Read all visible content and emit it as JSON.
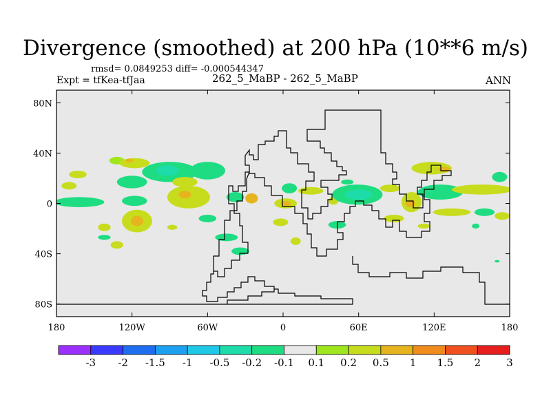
{
  "header": {
    "title": "Divergence (smoothed) at 200 hPa (10**6 m/s)",
    "stats": "rmsd= 0.0849253 diff= -0.000544347",
    "expt": "Expt = tfKea-tfJaa",
    "cases": "262_5_MaBP - 262_5_MaBP",
    "period": "ANN"
  },
  "chart_data": {
    "type": "heatmap",
    "title": "Divergence (smoothed) at 200 hPa (10**6 m/s)",
    "xlim": [
      -180,
      180
    ],
    "ylim": [
      -90,
      90
    ],
    "x_ticks": [
      {
        "value": -180,
        "label": "180"
      },
      {
        "value": -120,
        "label": "120W"
      },
      {
        "value": -60,
        "label": "60W"
      },
      {
        "value": 0,
        "label": "0"
      },
      {
        "value": 60,
        "label": "60E"
      },
      {
        "value": 120,
        "label": "120E"
      },
      {
        "value": 180,
        "label": "180"
      }
    ],
    "y_ticks": [
      {
        "value": 80,
        "label": "80N"
      },
      {
        "value": 40,
        "label": "40N"
      },
      {
        "value": 0,
        "label": "0"
      },
      {
        "value": -40,
        "label": "40S"
      },
      {
        "value": -80,
        "label": "80S"
      }
    ],
    "colorbar": {
      "levels": [
        "-3",
        "-2",
        "-1.5",
        "-1",
        "-0.5",
        "-0.2",
        "-0.1",
        "0.1",
        "0.2",
        "0.5",
        "1",
        "1.5",
        "2",
        "3"
      ],
      "colors": [
        "#9b30ff",
        "#3a3aff",
        "#1e6ef0",
        "#1ea0f0",
        "#1ec8e6",
        "#1edcaa",
        "#1edc82",
        "#e8e8e8",
        "#a0e61e",
        "#c8dc1e",
        "#e6b41e",
        "#f08c1e",
        "#f0501e",
        "#e61e1e"
      ]
    },
    "background_color": "#e8e8e8",
    "contour_regions": [
      {
        "lon": -163,
        "lat": 23,
        "rlon": 7,
        "rlat": 3,
        "value": 0.2
      },
      {
        "lon": -132,
        "lat": 34,
        "rlon": 6,
        "rlat": 3,
        "value": 0.1
      },
      {
        "lon": -118,
        "lat": 32,
        "rlon": 12,
        "rlat": 4,
        "value": 0.3
      },
      {
        "lon": -122,
        "lat": 34,
        "rlon": 3,
        "rlat": 1.5,
        "value": 0.7
      },
      {
        "lon": -90,
        "lat": 25,
        "rlon": 22,
        "rlat": 8,
        "value": -0.15
      },
      {
        "lon": -92,
        "lat": 26,
        "rlon": 9,
        "rlat": 4,
        "value": -0.3
      },
      {
        "lon": -60,
        "lat": 26,
        "rlon": 14,
        "rlat": 7,
        "value": -0.15
      },
      {
        "lon": -170,
        "lat": 14,
        "rlon": 6,
        "rlat": 3,
        "value": 0.2
      },
      {
        "lon": -120,
        "lat": 17,
        "rlon": 12,
        "rlat": 5,
        "value": -0.15
      },
      {
        "lon": -78,
        "lat": 17,
        "rlon": 10,
        "rlat": 4,
        "value": 0.2
      },
      {
        "lon": -162,
        "lat": 1,
        "rlon": 20,
        "rlat": 4,
        "value": -0.15
      },
      {
        "lon": -118,
        "lat": 2,
        "rlon": 10,
        "rlat": 4,
        "value": -0.15
      },
      {
        "lon": -75,
        "lat": 5,
        "rlon": 17,
        "rlat": 9,
        "value": 0.2
      },
      {
        "lon": -78,
        "lat": 7,
        "rlon": 5,
        "rlat": 3,
        "value": 0.6
      },
      {
        "lon": -38,
        "lat": 5,
        "rlon": 7,
        "rlat": 4,
        "value": -0.15
      },
      {
        "lon": -25,
        "lat": 4,
        "rlon": 5,
        "rlat": 4,
        "value": 0.6
      },
      {
        "lon": 5,
        "lat": 12,
        "rlon": 6,
        "rlat": 4,
        "value": -0.15
      },
      {
        "lon": 2,
        "lat": 0,
        "rlon": 9,
        "rlat": 4,
        "value": 0.3
      },
      {
        "lon": 2,
        "lat": 0,
        "rlon": 4,
        "rlat": 2,
        "value": 0.7
      },
      {
        "lon": 22,
        "lat": 10,
        "rlon": 10,
        "rlat": 3,
        "value": 0.2
      },
      {
        "lon": 40,
        "lat": 2,
        "rlon": 4,
        "rlat": 3,
        "value": 0.2
      },
      {
        "lon": 51,
        "lat": 17,
        "rlon": 5,
        "rlat": 2,
        "value": -0.15
      },
      {
        "lon": 59,
        "lat": 7,
        "rlon": 20,
        "rlat": 8,
        "value": -0.15
      },
      {
        "lon": 60,
        "lat": 7,
        "rlon": 11,
        "rlat": 4,
        "value": -0.4
      },
      {
        "lon": 85,
        "lat": 12,
        "rlon": 8,
        "rlat": 3,
        "value": 0.2
      },
      {
        "lon": 102,
        "lat": 1,
        "rlon": 8,
        "rlat": 8,
        "value": 0.3
      },
      {
        "lon": 101,
        "lat": 0,
        "rlon": 4,
        "rlat": 3,
        "value": 0.8
      },
      {
        "lon": 118,
        "lat": 28,
        "rlon": 16,
        "rlat": 5,
        "value": 0.3
      },
      {
        "lon": 128,
        "lat": 27,
        "rlon": 5,
        "rlat": 2,
        "value": 0.8
      },
      {
        "lon": 125,
        "lat": 9,
        "rlon": 18,
        "rlat": 6,
        "value": -0.15
      },
      {
        "lon": 172,
        "lat": 21,
        "rlon": 6,
        "rlat": 4,
        "value": -0.15
      },
      {
        "lon": 158,
        "lat": 11,
        "rlon": 24,
        "rlat": 4,
        "value": 0.2
      },
      {
        "lon": 134,
        "lat": -7,
        "rlon": 15,
        "rlat": 3,
        "value": 0.2
      },
      {
        "lon": 160,
        "lat": -7,
        "rlon": 8,
        "rlat": 3,
        "value": -0.15
      },
      {
        "lon": 153,
        "lat": -18,
        "rlon": 3,
        "rlat": 2,
        "value": -0.15
      },
      {
        "lon": 174,
        "lat": -10,
        "rlon": 6,
        "rlat": 3,
        "value": 0.2
      },
      {
        "lon": -142,
        "lat": -19,
        "rlon": 5,
        "rlat": 3,
        "value": 0.2
      },
      {
        "lon": -116,
        "lat": -14,
        "rlon": 12,
        "rlat": 9,
        "value": 0.3
      },
      {
        "lon": -116,
        "lat": -14,
        "rlon": 5,
        "rlat": 4,
        "value": 0.7
      },
      {
        "lon": -142,
        "lat": -27,
        "rlon": 5,
        "rlat": 2,
        "value": -0.15
      },
      {
        "lon": -132,
        "lat": -33,
        "rlon": 5,
        "rlat": 3,
        "value": 0.2
      },
      {
        "lon": -60,
        "lat": -12,
        "rlon": 7,
        "rlat": 3,
        "value": -0.15
      },
      {
        "lon": -88,
        "lat": -19,
        "rlon": 4,
        "rlat": 2,
        "value": 0.2
      },
      {
        "lon": -45,
        "lat": -27,
        "rlon": 9,
        "rlat": 3,
        "value": -0.15
      },
      {
        "lon": -34,
        "lat": -38,
        "rlon": 7,
        "rlat": 3,
        "value": -0.15
      },
      {
        "lon": -2,
        "lat": -15,
        "rlon": 6,
        "rlat": 3,
        "value": 0.2
      },
      {
        "lon": 10,
        "lat": -30,
        "rlon": 4,
        "rlat": 3,
        "value": 0.2
      },
      {
        "lon": 43,
        "lat": -17,
        "rlon": 7,
        "rlat": 3,
        "value": -0.15
      },
      {
        "lon": 88,
        "lat": -12,
        "rlon": 8,
        "rlat": 3,
        "value": 0.2
      },
      {
        "lon": 112,
        "lat": -18,
        "rlon": 5,
        "rlat": 2,
        "value": 0.2
      },
      {
        "lon": 170,
        "lat": -46,
        "rlon": 2,
        "rlat": 1,
        "value": -0.15
      }
    ]
  }
}
